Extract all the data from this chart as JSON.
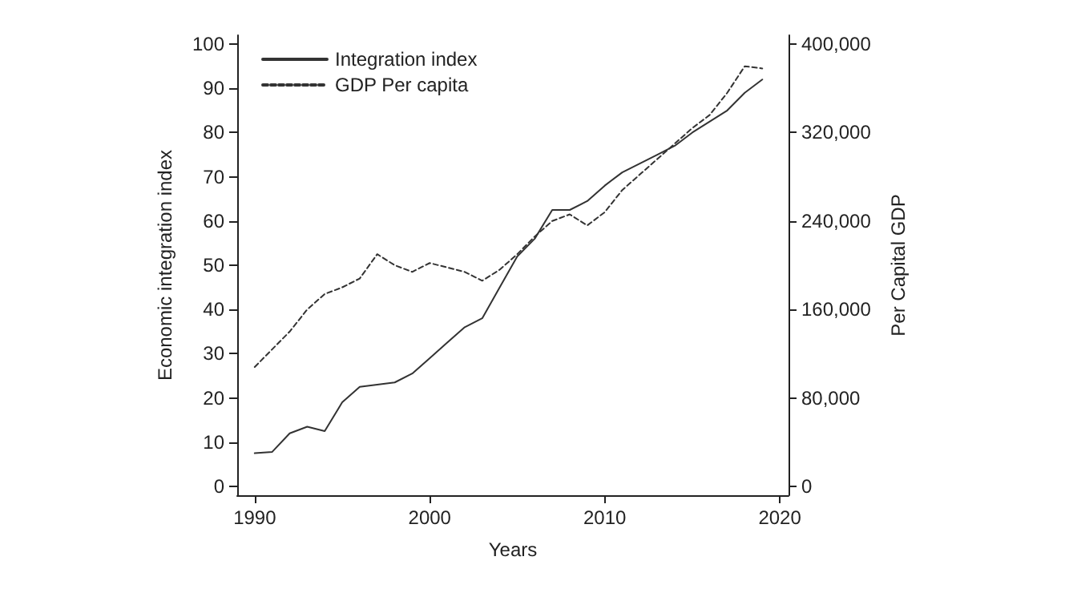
{
  "chart_data": {
    "type": "line",
    "xlabel": "Years",
    "ylabel": "Economic integration index",
    "y2label": "Per Capital GDP",
    "x": [
      1990,
      1991,
      1992,
      1993,
      1994,
      1995,
      1996,
      1997,
      1998,
      1999,
      2000,
      2001,
      2002,
      2003,
      2004,
      2005,
      2006,
      2007,
      2008,
      2009,
      2010,
      2011,
      2012,
      2013,
      2014,
      2015,
      2016,
      2017,
      2018,
      2019
    ],
    "series": [
      {
        "name": "Integration index",
        "color": "#333333",
        "line_style": "solid",
        "values": [
          7.5,
          7.8,
          12,
          13.5,
          12.5,
          19,
          22.5,
          23,
          23.5,
          25.5,
          29,
          32.5,
          36,
          38,
          45,
          52,
          56,
          62.5,
          62.5,
          64.5,
          68,
          71,
          73,
          75,
          77,
          80,
          82.5,
          85,
          89,
          92
        ]
      },
      {
        "name": "GDP Per capita",
        "color": "#333333",
        "line_style": "dashed",
        "axis": "y2",
        "values": [
          108000,
          124000,
          140000,
          160000,
          174000,
          180000,
          188000,
          210000,
          200000,
          194000,
          202000,
          198000,
          194000,
          186000,
          196000,
          210000,
          226000,
          240000,
          246000,
          236000,
          248000,
          268000,
          282000,
          296000,
          310000,
          324000,
          336000,
          356000,
          380000,
          378000
        ]
      }
    ],
    "xlim": [
      1989,
      2020.5
    ],
    "xticks": [
      1990,
      2000,
      2010,
      2020
    ],
    "ylim": [
      -2,
      102
    ],
    "yticks": [
      0,
      10,
      20,
      30,
      40,
      50,
      60,
      70,
      80,
      90,
      100
    ],
    "y2lim": [
      -8000,
      408000
    ],
    "y2ticks": [
      {
        "value": 0,
        "label": "0"
      },
      {
        "value": 80000,
        "label": "80,000"
      },
      {
        "value": 160000,
        "label": "160,000"
      },
      {
        "value": 240000,
        "label": "240,000"
      },
      {
        "value": 320000,
        "label": "320,000"
      },
      {
        "value": 400000,
        "label": "400,000"
      }
    ],
    "grid": false,
    "legend": "top left",
    "marker": "none"
  }
}
